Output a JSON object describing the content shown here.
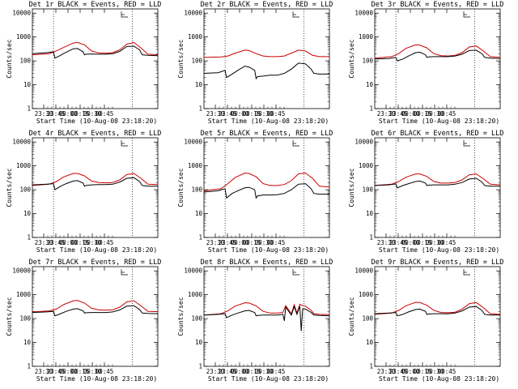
{
  "chart_data": [
    {
      "type": "line",
      "title": "Det 1r BLACK = Events, RED = LLD",
      "xlabel": "Start Time (10-Aug-08 23:18:20)",
      "ylabel": "Counts/sec",
      "yscale": "log",
      "ylim": [
        1,
        15000
      ],
      "xlim": [
        -12,
        77
      ],
      "x_ticks": [
        "23:30",
        "23:45",
        "00:00",
        "00:15",
        "00:30",
        "00:45"
      ],
      "y_ticks": [
        "1",
        "10",
        "100",
        "1000",
        "10000"
      ],
      "marker_lines": [
        3,
        59
      ],
      "legend_box_tick": "L",
      "series": [
        {
          "color": "#cc0000",
          "x": [
            -12,
            0,
            3,
            10,
            17,
            20,
            25,
            30,
            35,
            40,
            45,
            50,
            55,
            60,
            65,
            70,
            77
          ],
          "y": [
            180,
            200,
            230,
            360,
            560,
            590,
            470,
            260,
            215,
            210,
            220,
            290,
            500,
            590,
            350,
            190,
            180
          ]
        },
        {
          "color": "#000000",
          "x": [
            -12,
            -2,
            3,
            4,
            8,
            10,
            17,
            20,
            24,
            25,
            26,
            30,
            35,
            40,
            45,
            50,
            55,
            60,
            64,
            66,
            70,
            77
          ],
          "y": [
            200,
            220,
            240,
            130,
            170,
            200,
            320,
            330,
            240,
            180,
            190,
            195,
            190,
            190,
            200,
            250,
            400,
            410,
            290,
            180,
            170,
            165
          ]
        }
      ]
    },
    {
      "type": "line",
      "title": "Det 2r BLACK = Events, RED = LLD",
      "xlabel": "Start Time (10-Aug-08 23:18:20)",
      "ylabel": "Counts/sec",
      "yscale": "log",
      "ylim": [
        1,
        15000
      ],
      "xlim": [
        -12,
        77
      ],
      "x_ticks": [
        "23:30",
        "23:45",
        "00:00",
        "00:15",
        "00:30",
        "00:45"
      ],
      "y_ticks": [
        "1",
        "10",
        "100",
        "1000",
        "10000"
      ],
      "marker_lines": [
        3,
        59
      ],
      "legend_box_tick": "L",
      "series": [
        {
          "color": "#cc0000",
          "x": [
            -12,
            0,
            5,
            10,
            17,
            20,
            25,
            30,
            35,
            40,
            45,
            50,
            55,
            60,
            65,
            70,
            77
          ],
          "y": [
            140,
            145,
            160,
            210,
            280,
            270,
            200,
            160,
            150,
            150,
            160,
            210,
            280,
            260,
            170,
            150,
            150
          ]
        },
        {
          "color": "#000000",
          "x": [
            -12,
            -2,
            3,
            4,
            8,
            12,
            17,
            20,
            24,
            25,
            26,
            30,
            35,
            40,
            45,
            50,
            55,
            60,
            64,
            66,
            70,
            77
          ],
          "y": [
            30,
            32,
            40,
            20,
            28,
            40,
            60,
            55,
            40,
            18,
            22,
            23,
            25,
            25,
            30,
            45,
            80,
            75,
            45,
            30,
            28,
            28
          ]
        }
      ]
    },
    {
      "type": "line",
      "title": "Det 3r BLACK = Events, RED = LLD",
      "xlabel": "Start Time (10-Aug-08 23:18:20)",
      "ylabel": "Counts/sec",
      "yscale": "log",
      "ylim": [
        1,
        15000
      ],
      "xlim": [
        -12,
        77
      ],
      "x_ticks": [
        "23:30",
        "23:45",
        "00:00",
        "00:15",
        "00:30",
        "00:45"
      ],
      "y_ticks": [
        "1",
        "10",
        "100",
        "1000",
        "10000"
      ],
      "marker_lines": [
        3,
        59
      ],
      "legend_box_tick": "L",
      "series": [
        {
          "color": "#cc0000",
          "x": [
            -12,
            0,
            5,
            10,
            17,
            20,
            25,
            30,
            35,
            40,
            45,
            50,
            55,
            60,
            65,
            70,
            77
          ],
          "y": [
            130,
            150,
            200,
            330,
            470,
            460,
            350,
            200,
            165,
            160,
            170,
            220,
            380,
            420,
            260,
            150,
            140
          ]
        },
        {
          "color": "#000000",
          "x": [
            -12,
            -2,
            3,
            4,
            8,
            12,
            17,
            20,
            24,
            25,
            26,
            30,
            35,
            40,
            45,
            50,
            55,
            60,
            64,
            66,
            70,
            77
          ],
          "y": [
            120,
            125,
            140,
            100,
            120,
            160,
            220,
            230,
            180,
            140,
            145,
            150,
            150,
            150,
            160,
            190,
            270,
            280,
            200,
            140,
            130,
            125
          ]
        }
      ]
    },
    {
      "type": "line",
      "title": "Det 4r BLACK = Events, RED = LLD",
      "xlabel": "Start Time (10-Aug-08 23:18:20)",
      "ylabel": "Counts/sec",
      "yscale": "log",
      "ylim": [
        1,
        15000
      ],
      "xlim": [
        -12,
        77
      ],
      "x_ticks": [
        "23:30",
        "23:45",
        "00:00",
        "00:15",
        "00:30",
        "00:45"
      ],
      "y_ticks": [
        "1",
        "10",
        "100",
        "1000",
        "10000"
      ],
      "marker_lines": [
        3,
        59
      ],
      "legend_box_tick": "L",
      "series": [
        {
          "color": "#cc0000",
          "x": [
            -12,
            0,
            5,
            10,
            17,
            20,
            25,
            30,
            35,
            40,
            45,
            50,
            55,
            60,
            65,
            70,
            77
          ],
          "y": [
            150,
            170,
            220,
            340,
            480,
            480,
            380,
            230,
            200,
            195,
            200,
            260,
            430,
            480,
            300,
            170,
            165
          ]
        },
        {
          "color": "#000000",
          "x": [
            -12,
            -2,
            3,
            4,
            8,
            12,
            17,
            20,
            24,
            25,
            26,
            30,
            35,
            40,
            45,
            50,
            55,
            60,
            64,
            66,
            70,
            77
          ],
          "y": [
            160,
            170,
            180,
            100,
            140,
            180,
            230,
            240,
            190,
            140,
            150,
            160,
            165,
            165,
            170,
            210,
            300,
            320,
            220,
            150,
            140,
            140
          ]
        }
      ]
    },
    {
      "type": "line",
      "title": "Det 5r BLACK = Events, RED = LLD",
      "xlabel": "Start Time (10-Aug-08 23:18:20)",
      "ylabel": "Counts/sec",
      "yscale": "log",
      "ylim": [
        1,
        15000
      ],
      "xlim": [
        -12,
        77
      ],
      "x_ticks": [
        "23:30",
        "23:45",
        "00:00",
        "00:15",
        "00:30",
        "00:45"
      ],
      "y_ticks": [
        "1",
        "10",
        "100",
        "1000",
        "10000"
      ],
      "marker_lines": [
        3,
        59
      ],
      "legend_box_tick": "L",
      "series": [
        {
          "color": "#cc0000",
          "x": [
            -12,
            0,
            5,
            10,
            17,
            20,
            25,
            30,
            35,
            40,
            45,
            50,
            55,
            60,
            65,
            70,
            77
          ],
          "y": [
            90,
            110,
            180,
            320,
            500,
            480,
            350,
            180,
            150,
            150,
            165,
            240,
            460,
            500,
            300,
            140,
            130
          ]
        },
        {
          "color": "#000000",
          "x": [
            -12,
            -2,
            3,
            4,
            8,
            12,
            17,
            20,
            24,
            25,
            26,
            30,
            35,
            40,
            45,
            50,
            55,
            60,
            64,
            66,
            70,
            77
          ],
          "y": [
            80,
            90,
            110,
            45,
            70,
            90,
            120,
            125,
            100,
            45,
            55,
            60,
            60,
            62,
            70,
            100,
            170,
            180,
            110,
            70,
            65,
            65
          ]
        }
      ]
    },
    {
      "type": "line",
      "title": "Det 6r BLACK = Events, RED = LLD",
      "xlabel": "Start Time (10-Aug-08 23:18:20)",
      "ylabel": "Counts/sec",
      "yscale": "log",
      "ylim": [
        1,
        15000
      ],
      "xlim": [
        -12,
        77
      ],
      "x_ticks": [
        "23:30",
        "23:45",
        "00:00",
        "00:15",
        "00:30",
        "00:45"
      ],
      "y_ticks": [
        "1",
        "10",
        "100",
        "1000",
        "10000"
      ],
      "marker_lines": [
        3,
        59
      ],
      "legend_box_tick": "L",
      "series": [
        {
          "color": "#cc0000",
          "x": [
            -12,
            0,
            5,
            10,
            17,
            20,
            25,
            30,
            35,
            40,
            45,
            50,
            55,
            60,
            65,
            70,
            77
          ],
          "y": [
            150,
            170,
            220,
            330,
            460,
            460,
            360,
            220,
            190,
            190,
            200,
            260,
            420,
            460,
            290,
            170,
            160
          ]
        },
        {
          "color": "#000000",
          "x": [
            -12,
            -2,
            3,
            4,
            8,
            12,
            17,
            20,
            24,
            25,
            26,
            30,
            35,
            40,
            45,
            50,
            55,
            60,
            64,
            66,
            70,
            77
          ],
          "y": [
            150,
            160,
            175,
            120,
            150,
            180,
            220,
            230,
            190,
            150,
            155,
            160,
            160,
            160,
            170,
            200,
            280,
            300,
            210,
            150,
            140,
            140
          ]
        }
      ]
    },
    {
      "type": "line",
      "title": "Det 7r BLACK = Events, RED = LLD",
      "xlabel": "Start Time (10-Aug-08 23:18:20)",
      "ylabel": "Counts/sec",
      "yscale": "log",
      "ylim": [
        1,
        15000
      ],
      "xlim": [
        -12,
        77
      ],
      "x_ticks": [
        "23:30",
        "23:45",
        "00:00",
        "00:15",
        "00:30",
        "00:45"
      ],
      "y_ticks": [
        "1",
        "10",
        "100",
        "1000",
        "10000"
      ],
      "marker_lines": [
        3,
        59
      ],
      "legend_box_tick": "L",
      "series": [
        {
          "color": "#cc0000",
          "x": [
            -12,
            0,
            5,
            10,
            17,
            20,
            25,
            30,
            35,
            40,
            45,
            50,
            55,
            60,
            65,
            70,
            77
          ],
          "y": [
            190,
            210,
            250,
            380,
            560,
            570,
            450,
            270,
            230,
            225,
            235,
            300,
            500,
            560,
            340,
            200,
            195
          ]
        },
        {
          "color": "#000000",
          "x": [
            -12,
            -2,
            3,
            4,
            8,
            12,
            17,
            20,
            24,
            25,
            26,
            30,
            35,
            40,
            45,
            50,
            55,
            60,
            64,
            66,
            70,
            77
          ],
          "y": [
            180,
            190,
            200,
            130,
            160,
            200,
            250,
            260,
            210,
            170,
            175,
            180,
            180,
            180,
            190,
            230,
            330,
            350,
            240,
            170,
            165,
            160
          ]
        }
      ]
    },
    {
      "type": "line",
      "title": "Det 8r BLACK = Events, RED = LLD",
      "xlabel": "Start Time (10-Aug-08 23:18:20)",
      "ylabel": "Counts/sec",
      "yscale": "log",
      "ylim": [
        1,
        15000
      ],
      "xlim": [
        -12,
        77
      ],
      "x_ticks": [
        "23:30",
        "23:45",
        "00:00",
        "00:15",
        "00:30",
        "00:45"
      ],
      "y_ticks": [
        "1",
        "10",
        "100",
        "1000",
        "10000"
      ],
      "marker_lines": [
        3,
        59
      ],
      "legend_box_tick": "L",
      "series": [
        {
          "color": "#cc0000",
          "x": [
            -12,
            0,
            5,
            10,
            17,
            20,
            25,
            30,
            35,
            40,
            44,
            46,
            50,
            52,
            54,
            56,
            58,
            60,
            64,
            66,
            70,
            77
          ],
          "y": [
            140,
            160,
            210,
            330,
            460,
            450,
            340,
            200,
            170,
            170,
            180,
            350,
            160,
            380,
            170,
            400,
            350,
            330,
            220,
            160,
            150,
            145
          ]
        },
        {
          "color": "#000000",
          "x": [
            -12,
            -2,
            3,
            4,
            8,
            12,
            17,
            20,
            24,
            25,
            26,
            30,
            35,
            40,
            44,
            45,
            46,
            50,
            52,
            54,
            56,
            57,
            58,
            60,
            64,
            66,
            70,
            77
          ],
          "y": [
            140,
            150,
            160,
            110,
            140,
            170,
            210,
            220,
            180,
            130,
            135,
            140,
            140,
            140,
            150,
            80,
            300,
            140,
            320,
            150,
            330,
            30,
            260,
            250,
            180,
            140,
            135,
            130
          ]
        }
      ]
    },
    {
      "type": "line",
      "title": "Det 9r BLACK = Events, RED = LLD",
      "xlabel": "Start Time (10-Aug-08 23:18:20)",
      "ylabel": "Counts/sec",
      "yscale": "log",
      "ylim": [
        1,
        15000
      ],
      "xlim": [
        -12,
        77
      ],
      "x_ticks": [
        "23:30",
        "23:45",
        "00:00",
        "00:15",
        "00:30",
        "00:45"
      ],
      "y_ticks": [
        "1",
        "10",
        "100",
        "1000",
        "10000"
      ],
      "marker_lines": [
        3,
        59
      ],
      "legend_box_tick": "L",
      "series": [
        {
          "color": "#cc0000",
          "x": [
            -12,
            0,
            5,
            10,
            17,
            20,
            25,
            30,
            35,
            40,
            45,
            50,
            55,
            60,
            65,
            70,
            77
          ],
          "y": [
            150,
            170,
            220,
            340,
            480,
            470,
            360,
            220,
            180,
            175,
            185,
            250,
            420,
            470,
            290,
            160,
            150
          ]
        },
        {
          "color": "#000000",
          "x": [
            -12,
            -2,
            3,
            4,
            8,
            12,
            17,
            20,
            24,
            25,
            26,
            30,
            35,
            40,
            45,
            50,
            55,
            60,
            64,
            66,
            70,
            77
          ],
          "y": [
            160,
            170,
            180,
            130,
            150,
            190,
            240,
            250,
            200,
            150,
            155,
            160,
            160,
            160,
            170,
            210,
            300,
            320,
            220,
            150,
            140,
            140
          ]
        }
      ]
    }
  ]
}
